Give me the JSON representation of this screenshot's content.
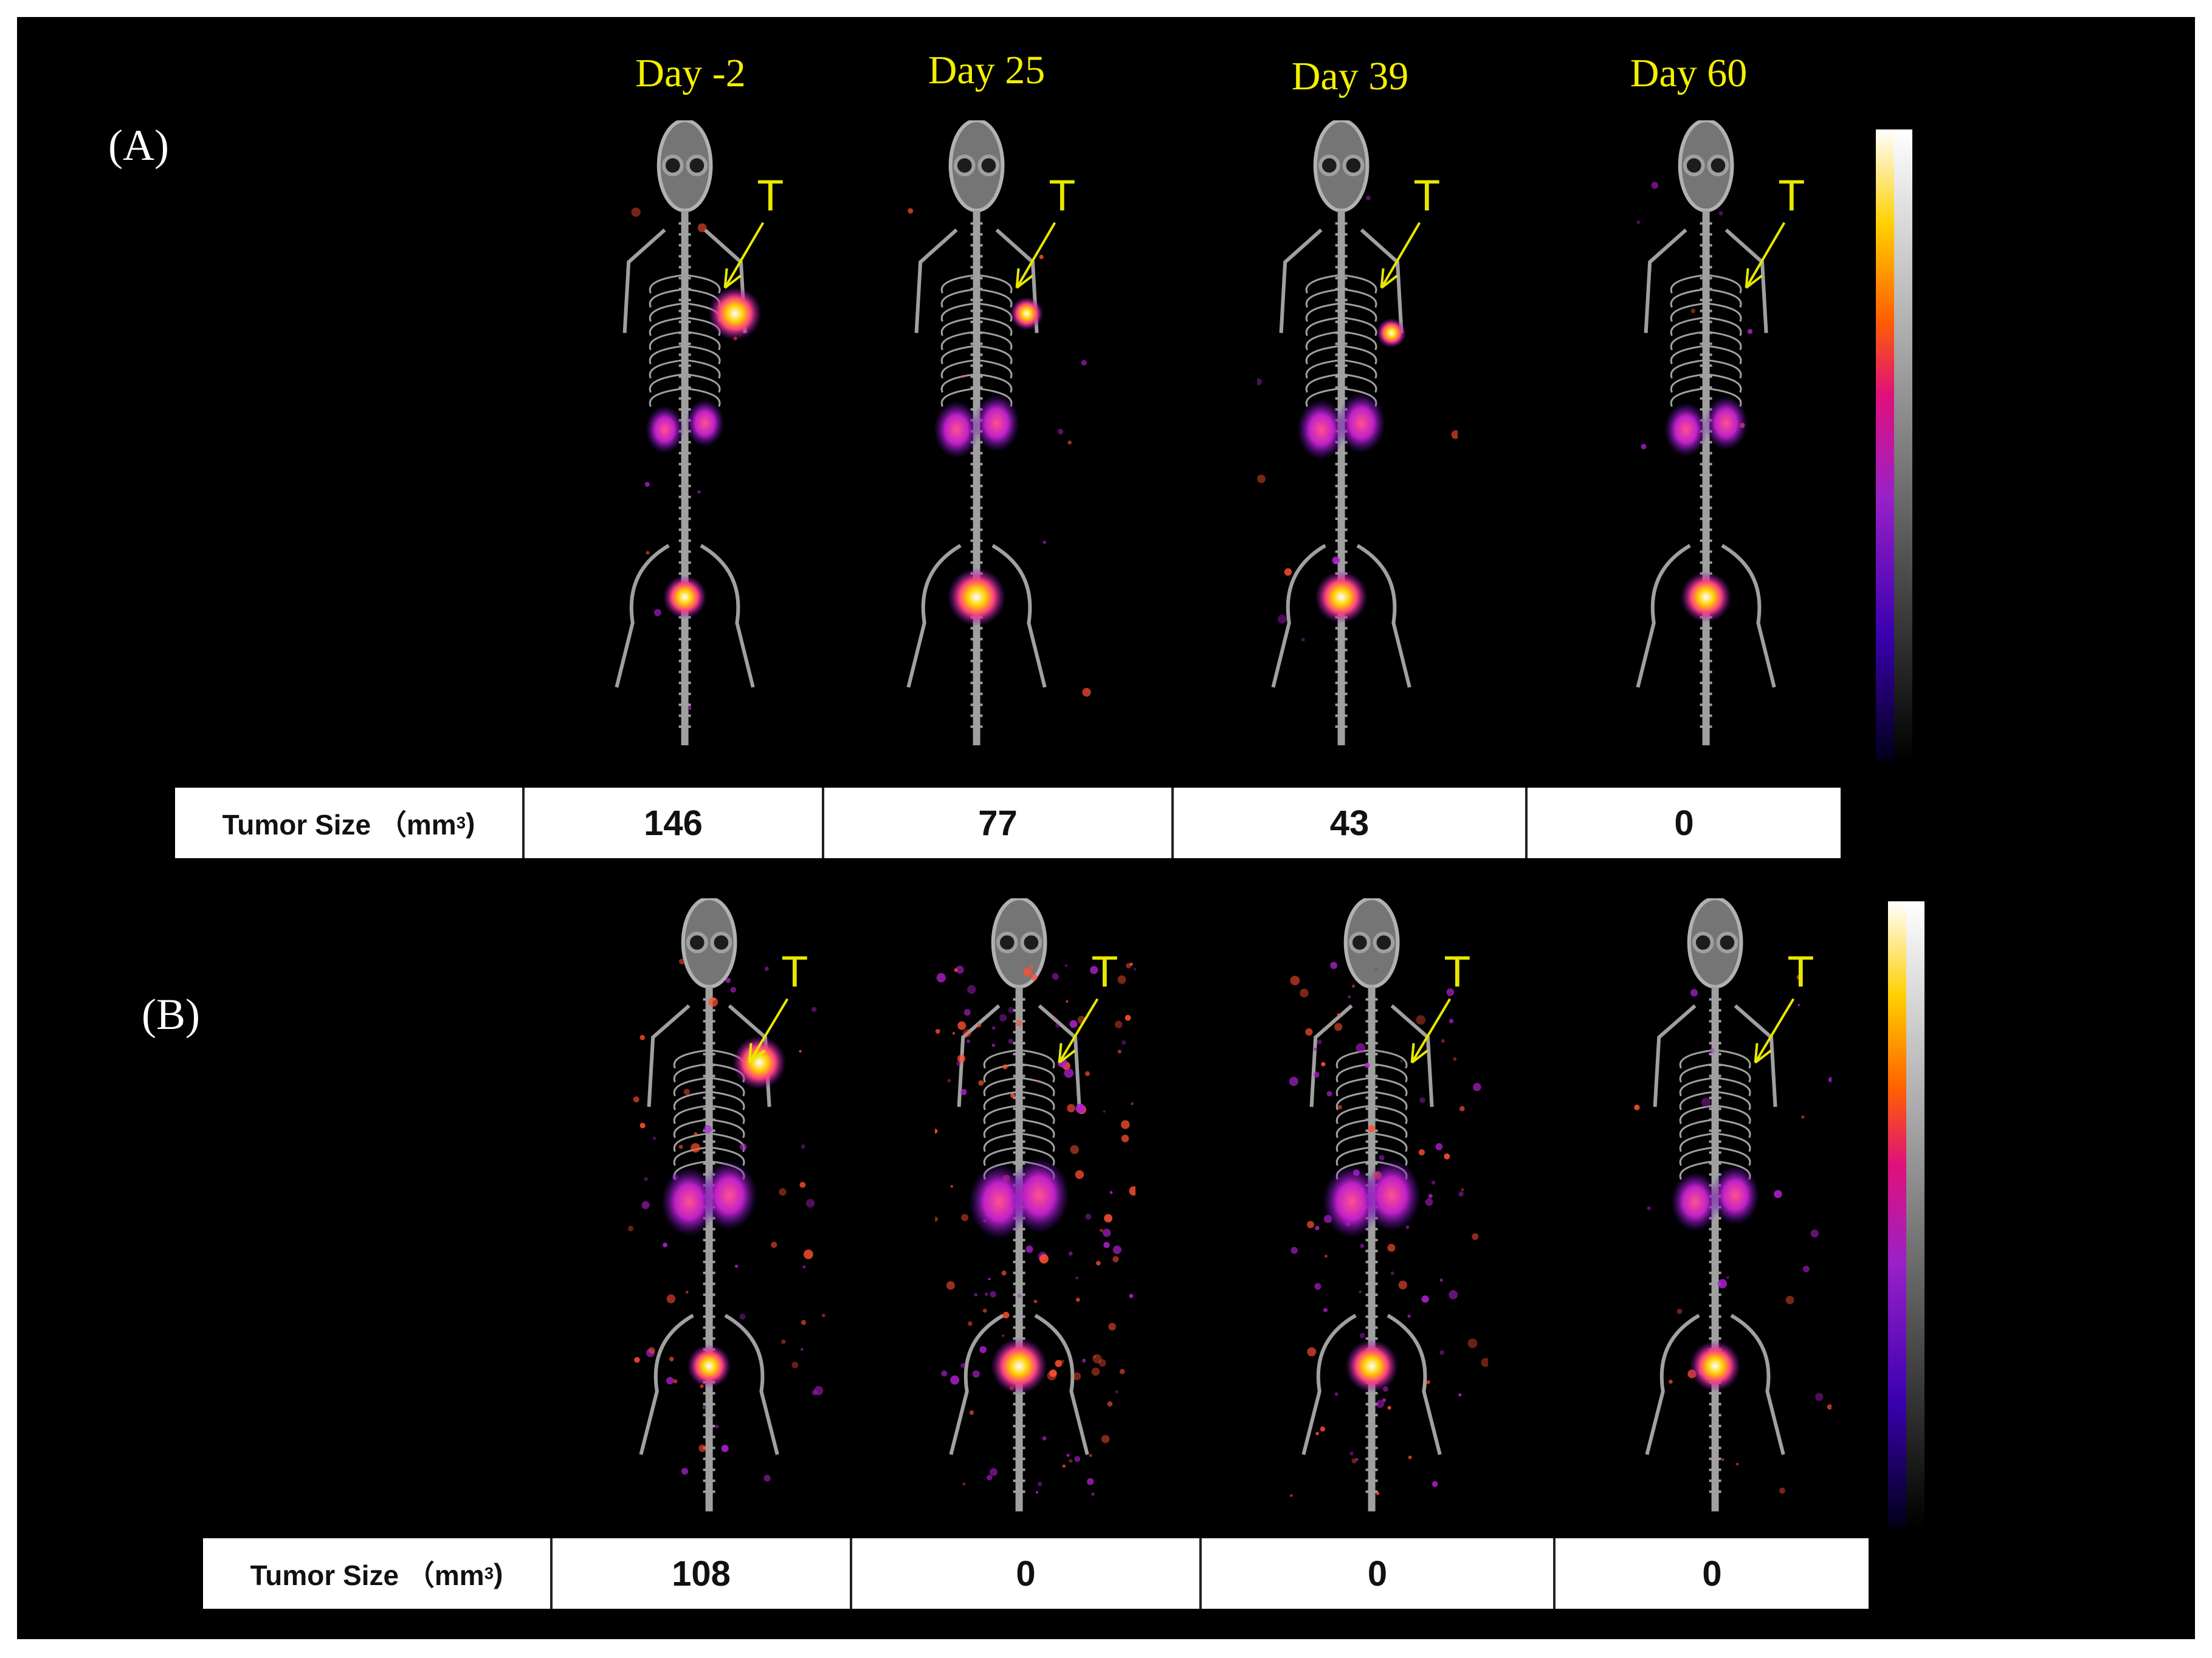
{
  "panels": [
    {
      "label": "(A)",
      "days": [
        "Day -2",
        "Day 25",
        "Day 39",
        "Day 60"
      ],
      "tumor_marker": "T",
      "table_header": "Tumor Size （mm",
      "table_header_unit_sup": "3",
      "table_header_close": ")",
      "tumor_sizes": [
        "146",
        "77",
        "43",
        "0"
      ]
    },
    {
      "label": "(B)",
      "days": [
        "",
        "",
        "",
        ""
      ],
      "tumor_marker": "T",
      "table_header": "Tumor Size （mm",
      "table_header_unit_sup": "3",
      "table_header_close": ")",
      "tumor_sizes": [
        "108",
        "0",
        "0",
        "0"
      ]
    }
  ],
  "colors": {
    "day_label": "#f3f000",
    "arrow": "#e8e800",
    "background": "#000000",
    "hot_colormap": [
      "#000010",
      "#3a00b0",
      "#9a20c8",
      "#e0107a",
      "#ff6000",
      "#ffd000",
      "#ffffff"
    ]
  }
}
